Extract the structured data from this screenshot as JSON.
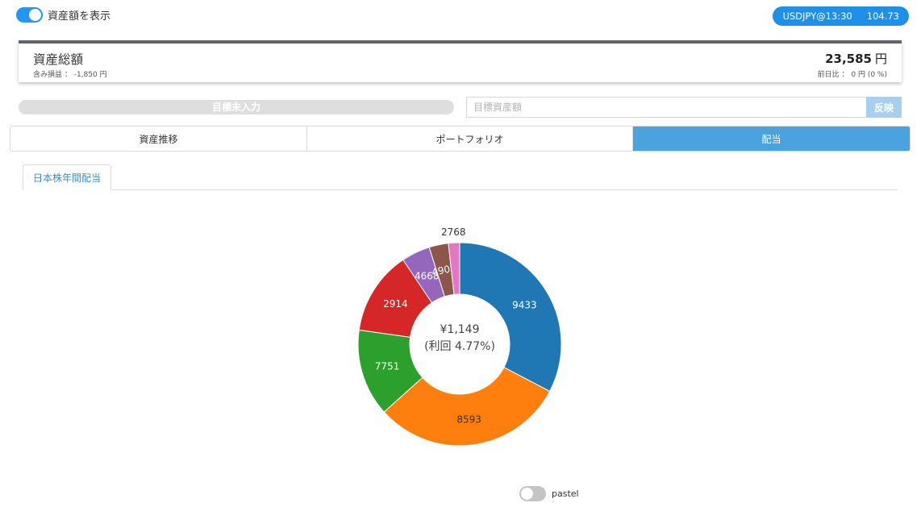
{
  "header": {
    "show_assets_label": "資産額を表示",
    "show_assets_on": true,
    "fx_label": "USDJPY@13:30",
    "fx_value": "104.73"
  },
  "asset": {
    "title": "資産総額",
    "unrealized": "含み損益 ： -1,850 円",
    "total_value": "23,585",
    "total_unit": "円",
    "day_change": "前日比 ： 0 円 (0 %)"
  },
  "goal": {
    "status": "目標未入力",
    "input_placeholder": "目標資産額",
    "input_value": "",
    "apply_label": "反映"
  },
  "tabs": [
    {
      "label": "資産推移",
      "active": false
    },
    {
      "label": "ポートフォリオ",
      "active": false
    },
    {
      "label": "配当",
      "active": true
    }
  ],
  "sub_tabs": [
    {
      "label": "日本株年間配当",
      "active": true
    }
  ],
  "chart_data": {
    "type": "pie",
    "categories": [
      "9433",
      "8593",
      "7751",
      "2914",
      "4668",
      "4902",
      "2768"
    ],
    "values": [
      33.0,
      31.0,
      14.0,
      13.5,
      4.6,
      3.1,
      1.8
    ],
    "colors": [
      "#1f77b4",
      "#ff7f0e",
      "#2ca02c",
      "#d62728",
      "#9467bd",
      "#8c564b",
      "#e377c2"
    ],
    "center_text": [
      "¥1,149",
      "(利回 4.77%)"
    ],
    "donut": true
  },
  "pastel": {
    "label": "pastel",
    "on": false
  }
}
